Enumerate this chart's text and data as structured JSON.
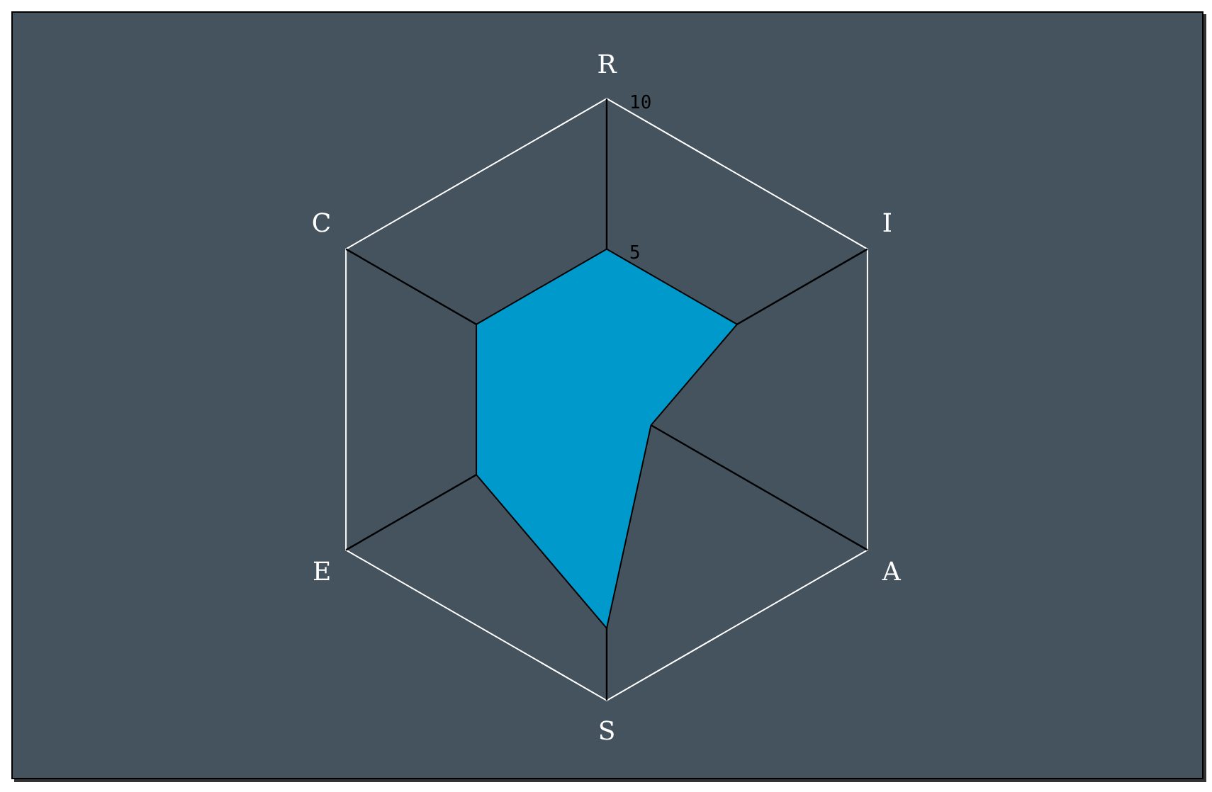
{
  "chart_data": {
    "type": "radar",
    "categories": [
      "R",
      "I",
      "A",
      "S",
      "E",
      "C"
    ],
    "series": [
      {
        "color": "#0099cc",
        "values": [
          5,
          5,
          1.7,
          7.6,
          5,
          5
        ]
      }
    ],
    "ylim": [
      0,
      10
    ],
    "yticks": [
      5,
      10
    ],
    "grid": true,
    "legend": false,
    "marker": "none"
  }
}
